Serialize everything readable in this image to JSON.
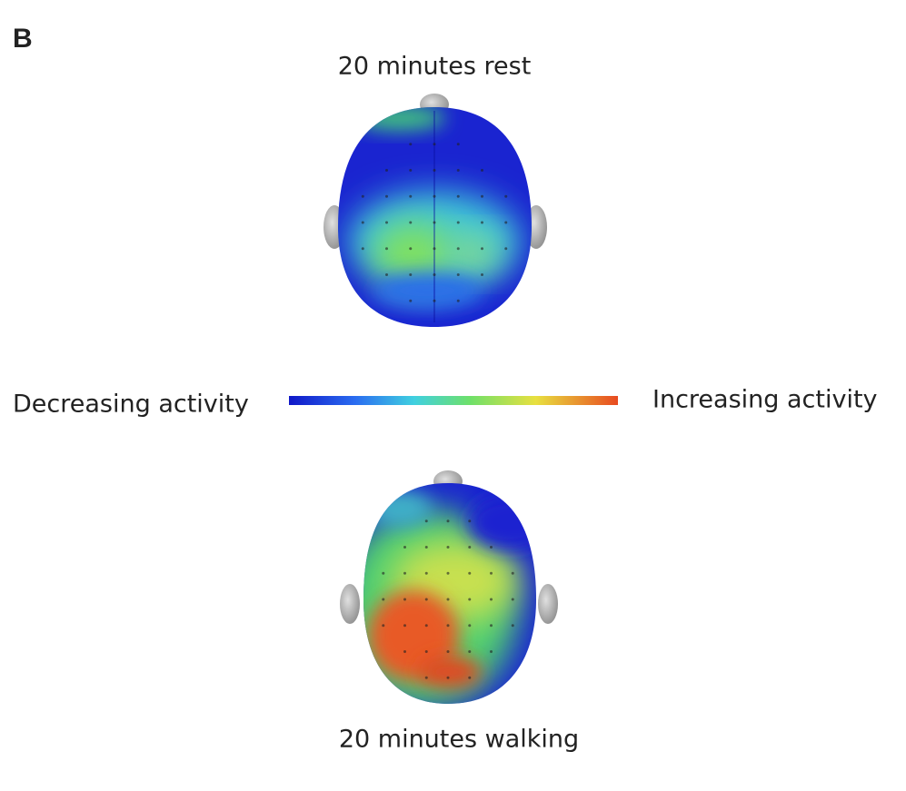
{
  "panel_label": "B",
  "top_map": {
    "title": "20 minutes rest"
  },
  "legend": {
    "left_label": "Decreasing activity",
    "right_label": "Increasing activity"
  },
  "bottom_map": {
    "title": "20 minutes walking"
  }
}
